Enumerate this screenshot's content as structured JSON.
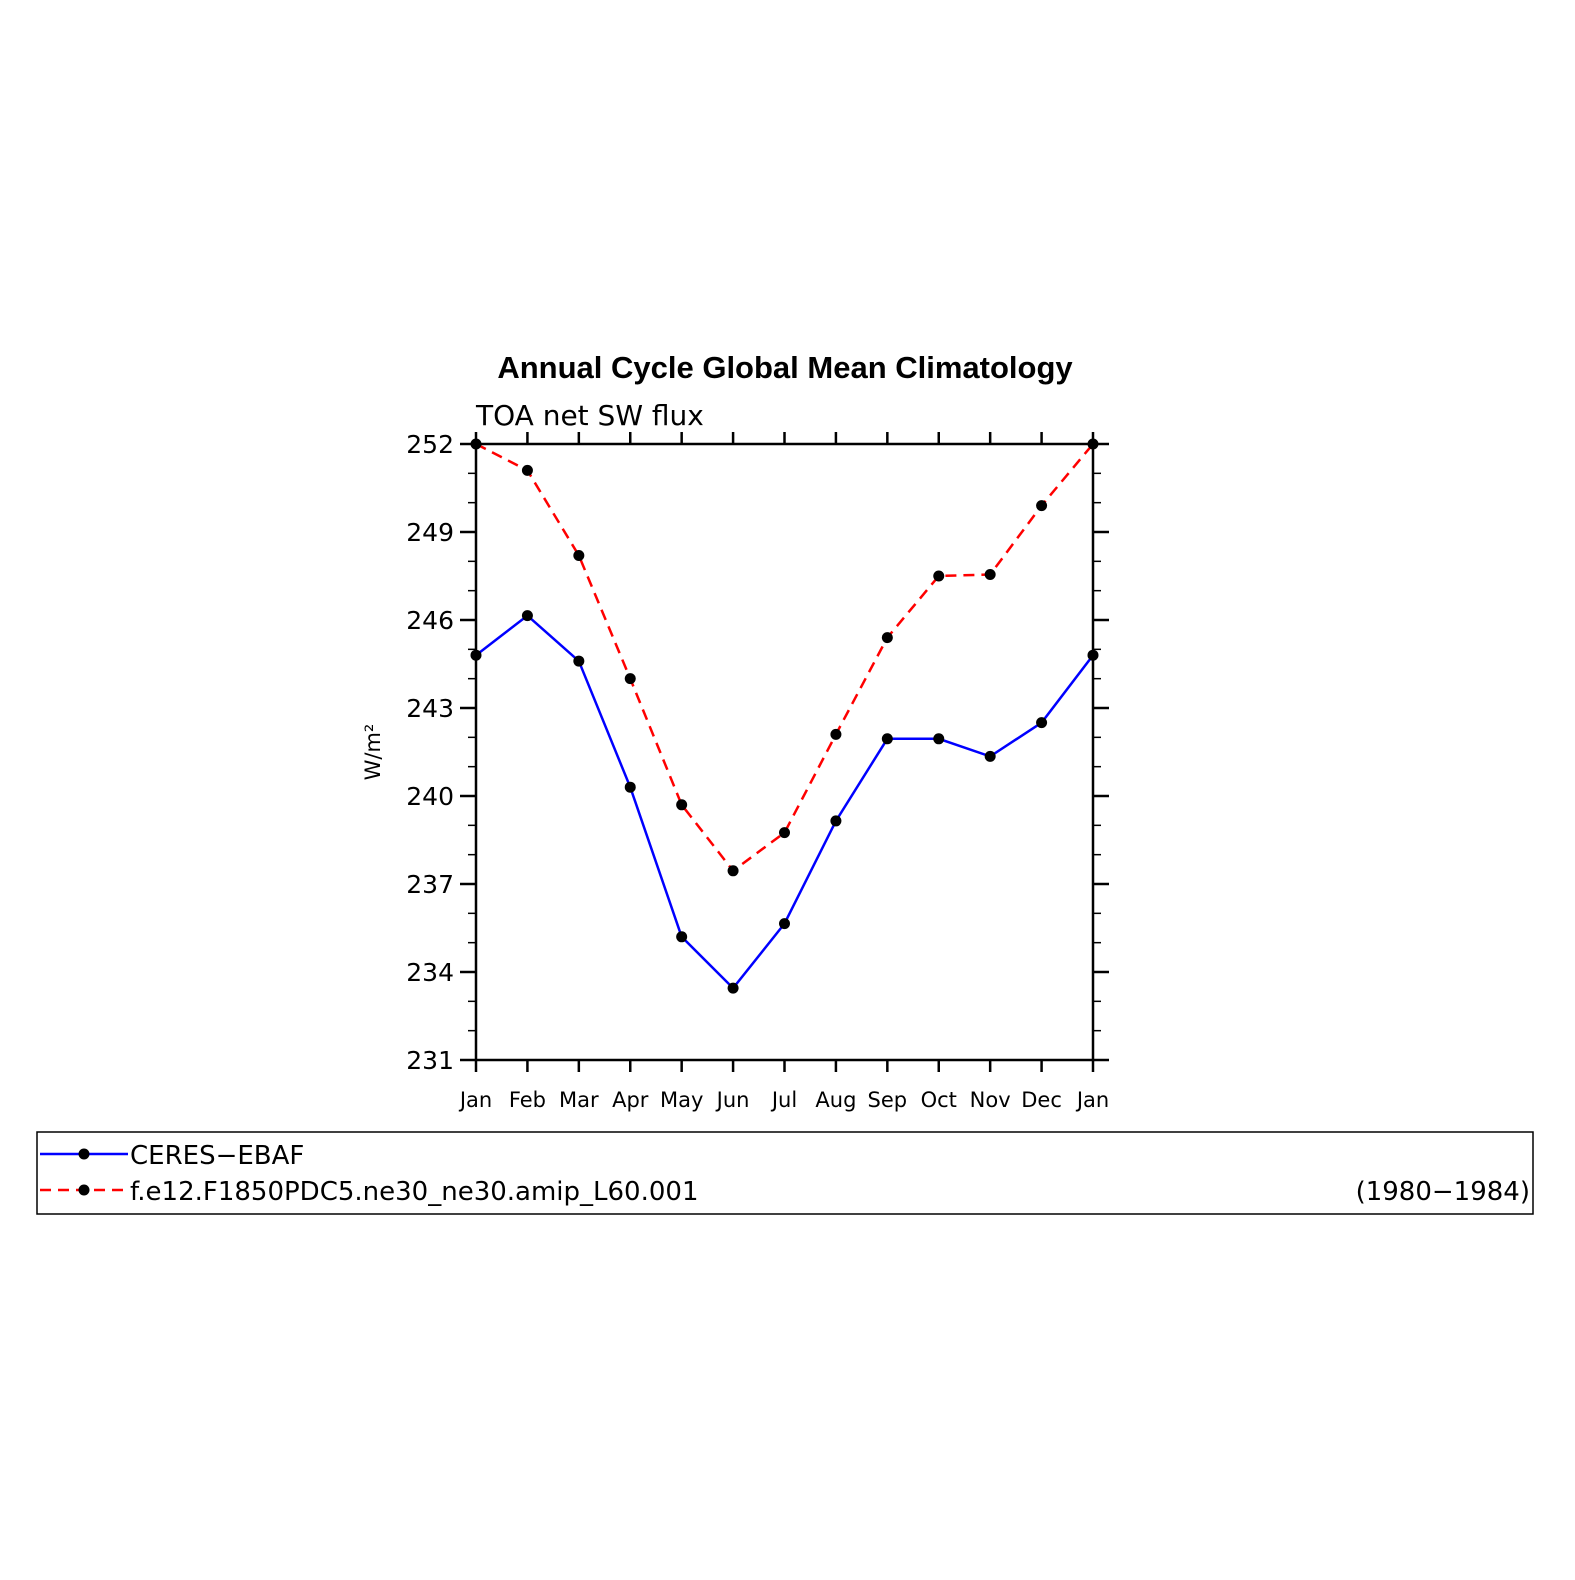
{
  "chart_data": {
    "type": "line",
    "title": "Annual Cycle Global Mean Climatology",
    "subtitle": "TOA net SW flux",
    "ylabel": "W/m²",
    "xlabel": "",
    "categories": [
      "Jan",
      "Feb",
      "Mar",
      "Apr",
      "May",
      "Jun",
      "Jul",
      "Aug",
      "Sep",
      "Oct",
      "Nov",
      "Dec",
      "Jan"
    ],
    "ylim": [
      231,
      252
    ],
    "yticks": [
      231,
      234,
      237,
      240,
      243,
      246,
      249,
      252
    ],
    "grid": false,
    "series": [
      {
        "name": "CERES−EBAF",
        "color": "#0000ff",
        "line_style": "solid",
        "marker": "filled-circle",
        "values": [
          244.8,
          246.15,
          244.6,
          240.3,
          235.2,
          233.45,
          235.65,
          239.15,
          241.95,
          241.95,
          241.35,
          242.5,
          244.8
        ]
      },
      {
        "name": "f.e12.F1850PDC5.ne30_ne30.amip_L60.001",
        "color": "#ff0000",
        "line_style": "dashed",
        "marker": "filled-circle",
        "values": [
          252.0,
          251.1,
          248.2,
          244.0,
          239.7,
          237.45,
          238.75,
          242.1,
          245.4,
          247.5,
          247.55,
          249.9,
          252.0
        ]
      }
    ],
    "legend": {
      "placement": "bottom",
      "note": "(1980−1984)"
    }
  }
}
